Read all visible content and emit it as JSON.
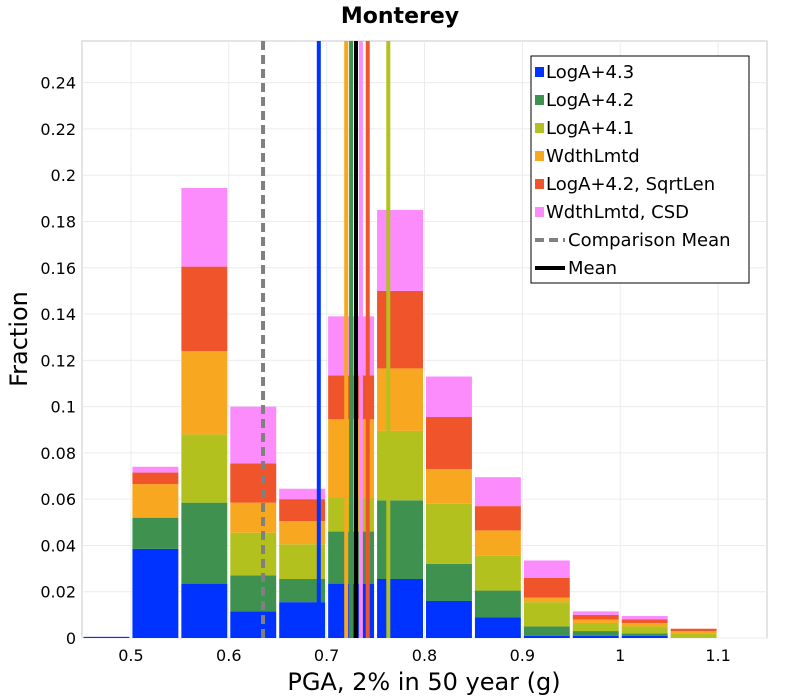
{
  "chart_data": {
    "type": "bar",
    "stacked": true,
    "title": "Monterey",
    "xlabel": "PGA, 2% in 50 year (g)",
    "ylabel": "Fraction",
    "xlim": [
      0.45,
      1.15
    ],
    "ylim": [
      0,
      0.258
    ],
    "x_ticks": [
      0.5,
      0.6,
      0.7,
      0.8,
      0.9,
      1,
      1.1
    ],
    "x_tick_labels": [
      "0.5",
      "0.6",
      "0.7",
      "0.8",
      "0.9",
      "1",
      "1.1"
    ],
    "y_ticks": [
      0,
      0.02,
      0.04,
      0.06,
      0.08,
      0.1,
      0.12,
      0.14,
      0.16,
      0.18,
      0.2,
      0.22,
      0.24
    ],
    "y_tick_labels": [
      "0",
      "0.02",
      "0.04",
      "0.06",
      "0.08",
      "0.1",
      "0.12",
      "0.14",
      "0.16",
      "0.18",
      "0.2",
      "0.22",
      "0.24"
    ],
    "grid": true,
    "bin_width": 0.05,
    "x": [
      0.45,
      0.5,
      0.55,
      0.6,
      0.65,
      0.7,
      0.75,
      0.8,
      0.85,
      0.9,
      0.95,
      1.0,
      1.05,
      1.1
    ],
    "series": [
      {
        "name": "LogA+4.3",
        "color": "#0033ff",
        "values": [
          0.0005,
          0.0385,
          0.0235,
          0.0115,
          0.0155,
          0.0235,
          0.0255,
          0.016,
          0.009,
          0.001,
          0.001,
          0.001,
          0.0,
          0.0
        ]
      },
      {
        "name": "LogA+4.2",
        "color": "#3f9150",
        "values": [
          0.0,
          0.0135,
          0.035,
          0.0155,
          0.01,
          0.0225,
          0.034,
          0.016,
          0.0115,
          0.004,
          0.002,
          0.001,
          0.0,
          0.0
        ]
      },
      {
        "name": "LogA+4.1",
        "color": "#b3c11f",
        "values": [
          0.0,
          0.0,
          0.0295,
          0.0185,
          0.015,
          0.0145,
          0.03,
          0.026,
          0.015,
          0.0105,
          0.0035,
          0.003,
          0.002,
          0.0
        ]
      },
      {
        "name": "WdthLmtd",
        "color": "#f8a720",
        "values": [
          0.0,
          0.0145,
          0.036,
          0.013,
          0.01,
          0.034,
          0.027,
          0.015,
          0.011,
          0.002,
          0.0015,
          0.0015,
          0.001,
          0.0
        ]
      },
      {
        "name": "LogA+4.2, SqrtLen",
        "color": "#f0542a",
        "values": [
          0.0,
          0.005,
          0.0365,
          0.017,
          0.0095,
          0.019,
          0.0335,
          0.0225,
          0.0105,
          0.0085,
          0.002,
          0.0015,
          0.001,
          0.0
        ]
      },
      {
        "name": "WdthLmtd, CSD",
        "color": "#fc8cfc",
        "values": [
          0.0,
          0.0025,
          0.034,
          0.0245,
          0.0045,
          0.0255,
          0.035,
          0.0175,
          0.0125,
          0.0075,
          0.0015,
          0.0015,
          0.0,
          0.0
        ]
      }
    ],
    "vertical_lines": [
      {
        "name": "LogA+4.3 mean",
        "color": "#0033ff",
        "x": 0.692,
        "style": "solid"
      },
      {
        "name": "WdthLmtd mean",
        "color": "#f8a720",
        "x": 0.72,
        "style": "solid"
      },
      {
        "name": "LogA+4.2 mean",
        "color": "#3f9150",
        "x": 0.725,
        "style": "solid"
      },
      {
        "name": "WdthLmtd, CSD mean",
        "color": "#fc8cfc",
        "x": 0.735,
        "style": "solid"
      },
      {
        "name": "LogA+4.2, SqrtLen mean",
        "color": "#f0542a",
        "x": 0.742,
        "style": "solid"
      },
      {
        "name": "LogA+4.1 mean",
        "color": "#b3c11f",
        "x": 0.763,
        "style": "solid"
      },
      {
        "name": "Comparison Mean",
        "color": "#808080",
        "x": 0.635,
        "style": "dashed"
      },
      {
        "name": "Mean",
        "color": "#000000",
        "x": 0.73,
        "style": "solid"
      }
    ],
    "legend": {
      "position": "top-right",
      "entries": [
        {
          "label": "LogA+4.3",
          "color": "#0033ff",
          "kind": "square"
        },
        {
          "label": "LogA+4.2",
          "color": "#3f9150",
          "kind": "square"
        },
        {
          "label": "LogA+4.1",
          "color": "#b3c11f",
          "kind": "square"
        },
        {
          "label": "WdthLmtd",
          "color": "#f8a720",
          "kind": "square"
        },
        {
          "label": "LogA+4.2, SqrtLen",
          "color": "#f0542a",
          "kind": "square"
        },
        {
          "label": "WdthLmtd, CSD",
          "color": "#fc8cfc",
          "kind": "square"
        },
        {
          "label": "Comparison Mean",
          "color": "#808080",
          "kind": "dashed-line"
        },
        {
          "label": "Mean",
          "color": "#000000",
          "kind": "line"
        }
      ]
    }
  }
}
